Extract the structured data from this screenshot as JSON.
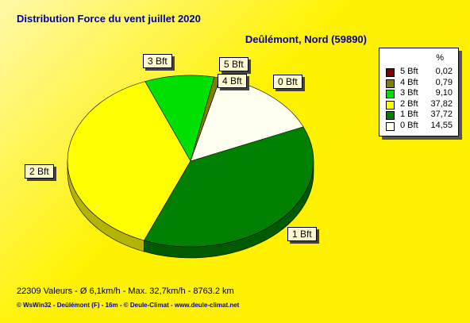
{
  "title": "Distribution Force du vent  juillet 2020",
  "subtitle": "Deûlémont, Nord (59890)",
  "legend": {
    "header": "%"
  },
  "footer": "22309 Valeurs   -   Ø 6,1km/h  -  Max. 32,7km/h   -   8763.2 km",
  "credits": "© WsWin32  -  Deûlémont (F) - 16m  -  © Deule-Climat - www.deule-climat.net",
  "chart_data": {
    "type": "pie",
    "title": "Distribution Force du vent  juillet 2020",
    "subtitle": "Deûlémont, Nord (59890)",
    "unit": "%",
    "slices": [
      {
        "label": "5 Bft",
        "value": 0.02,
        "value_text": "0,02",
        "color": "#800000"
      },
      {
        "label": "4 Bft",
        "value": 0.79,
        "value_text": "0,79",
        "color": "#808000"
      },
      {
        "label": "3 Bft",
        "value": 9.1,
        "value_text": "9,10",
        "color": "#00e000"
      },
      {
        "label": "2 Bft",
        "value": 37.82,
        "value_text": "37,82",
        "color": "#ffff00"
      },
      {
        "label": "1 Bft",
        "value": 37.72,
        "value_text": "37,72",
        "color": "#008000"
      },
      {
        "label": "0 Bft",
        "value": 14.55,
        "value_text": "14,55",
        "color": "#fffff0"
      }
    ]
  }
}
